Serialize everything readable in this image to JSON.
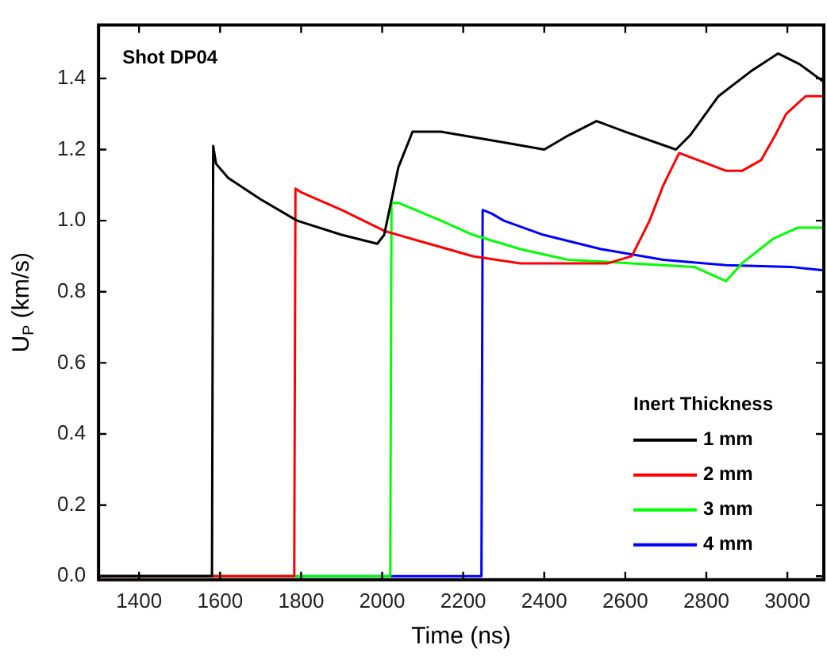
{
  "chart_data": {
    "type": "line",
    "title": "Shot DP04",
    "xlabel": "Time (ns)",
    "ylabel": "U$_{P}$ (km/s)",
    "legend_title": "Inert Thickness",
    "legend": "bottom right",
    "grid": false,
    "marker": "none",
    "line_style": "solid",
    "xlim": [
      1300,
      3090
    ],
    "xticks": [
      1400,
      1600,
      1800,
      2000,
      2200,
      2400,
      2600,
      2800,
      3000
    ],
    "ylim": [
      -0.01,
      1.55
    ],
    "yticks": [
      {
        "value": 0,
        "label": "0.0"
      },
      {
        "value": 0.2,
        "label": "0.2"
      },
      {
        "value": 0.4,
        "label": "0.4"
      },
      {
        "value": 0.6,
        "label": "0.6"
      },
      {
        "value": 0.8,
        "label": "0.8"
      },
      {
        "value": 1,
        "label": "1.0"
      },
      {
        "value": 1.2,
        "label": "1.2"
      },
      {
        "value": 1.4,
        "label": "1.4"
      }
    ],
    "series": [
      {
        "name": "1 mm",
        "color": "#000000",
        "x": [
          1300,
          1580,
          1583,
          1590,
          1620,
          1700,
          1790,
          1900,
          1988,
          2005,
          2040,
          2075,
          2145,
          2300,
          2400,
          2460,
          2529,
          2600,
          2725,
          2760,
          2830,
          2910,
          2977,
          3030,
          3090
        ],
        "values": [
          0,
          0,
          1.21,
          1.16,
          1.12,
          1.06,
          1.0,
          0.96,
          0.935,
          0.96,
          1.15,
          1.25,
          1.25,
          1.22,
          1.2,
          1.24,
          1.28,
          1.25,
          1.2,
          1.24,
          1.35,
          1.42,
          1.47,
          1.44,
          1.39
        ]
      },
      {
        "name": "2 mm",
        "color": "#ff0000",
        "x": [
          1300,
          1783,
          1786,
          1800,
          1900,
          2008,
          2100,
          2224,
          2341,
          2450,
          2557,
          2616,
          2660,
          2694,
          2733,
          2780,
          2849,
          2888,
          2935,
          2970,
          2997,
          3045,
          3090
        ],
        "values": [
          0,
          0,
          1.09,
          1.08,
          1.03,
          0.97,
          0.94,
          0.9,
          0.88,
          0.88,
          0.88,
          0.9,
          1.0,
          1.1,
          1.19,
          1.17,
          1.14,
          1.14,
          1.17,
          1.24,
          1.3,
          1.35,
          1.35
        ]
      },
      {
        "name": "3 mm",
        "color": "#00ff00",
        "x": [
          1300,
          2020,
          2023,
          2040,
          2145,
          2224,
          2341,
          2459,
          2616,
          2770,
          2829,
          2849,
          2888,
          2966,
          3025,
          3090
        ],
        "values": [
          0,
          0,
          1.05,
          1.05,
          1.0,
          0.96,
          0.92,
          0.89,
          0.88,
          0.87,
          0.84,
          0.83,
          0.88,
          0.95,
          0.98,
          0.98
        ]
      },
      {
        "name": "4 mm",
        "color": "#0000ff",
        "x": [
          1300,
          2245,
          2248,
          2270,
          2300,
          2398,
          2540,
          2694,
          2849,
          3008,
          3090
        ],
        "values": [
          0,
          0,
          1.03,
          1.02,
          1.0,
          0.96,
          0.92,
          0.89,
          0.875,
          0.87,
          0.86
        ]
      }
    ]
  }
}
